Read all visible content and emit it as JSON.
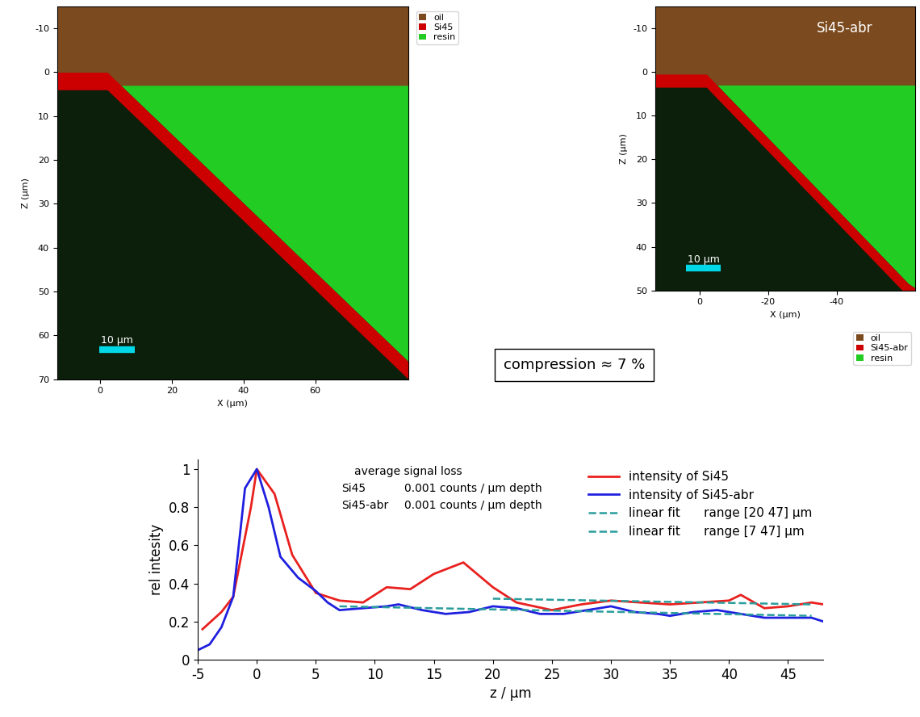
{
  "chart_data": [
    {
      "type": "map",
      "xlabel": "X (μm)",
      "ylabel": "Z (μm)",
      "xlim": [
        -12,
        86
      ],
      "xticks": [
        0,
        20,
        40,
        60
      ],
      "ylim": [
        70,
        -15
      ],
      "yticks": [
        -10,
        0,
        10,
        20,
        30,
        40,
        50,
        60,
        70
      ],
      "legend": "upper left",
      "series": [
        {
          "name": "oil",
          "color": "#7b4a1e",
          "z_range": [
            -15,
            3
          ]
        },
        {
          "name": "Si45",
          "color": "#cc0000",
          "x": [
            -12,
            2,
            86
          ],
          "z": [
            2,
            2,
            68
          ],
          "thickness": 4
        },
        {
          "name": "resin",
          "color": "#22cc22"
        }
      ],
      "scale_bar": {
        "label": "10 μm",
        "length": 10
      }
    },
    {
      "type": "map",
      "title": "Si45-abr",
      "xlabel": "X (μm)",
      "ylabel": "Z (μm)",
      "xlim": [
        13,
        -63
      ],
      "xticks": [
        0,
        -20,
        -40
      ],
      "ylim": [
        50,
        -15
      ],
      "yticks": [
        -10,
        0,
        10,
        20,
        30,
        40,
        50
      ],
      "legend": "upper right",
      "series": [
        {
          "name": "oil",
          "color": "#7b4a1e",
          "z_range": [
            -15,
            3
          ]
        },
        {
          "name": "Si45-abr",
          "color": "#cc0000",
          "x": [
            -63,
            -61,
            -2,
            13
          ],
          "z": [
            51,
            50,
            2,
            2
          ],
          "thickness": 3
        },
        {
          "name": "resin",
          "color": "#22cc22"
        }
      ],
      "scale_bar": {
        "label": "10 μm",
        "length": 10
      }
    },
    {
      "type": "line",
      "xlabel": "z / μm",
      "ylabel": "rel intesity",
      "xlim": [
        -5,
        48
      ],
      "xticks": [
        -5,
        0,
        5,
        10,
        15,
        20,
        25,
        30,
        35,
        40,
        45
      ],
      "ylim": [
        0,
        1.05
      ],
      "yticks": [
        0,
        0.2,
        0.4,
        0.6,
        0.8,
        1
      ],
      "legend": "upper right",
      "annotation": {
        "title": "average signal loss",
        "rows": [
          [
            "Si45",
            "0.001 counts / μm depth"
          ],
          [
            "Si45-abr",
            "0.001 counts / μm depth"
          ]
        ]
      },
      "series": [
        {
          "name": "intensity of Si45",
          "color": "#e8211f",
          "line_style": "solid",
          "x": [
            -4.6,
            -3,
            -2,
            -0.5,
            0,
            1.5,
            3,
            5,
            7,
            9,
            11,
            13,
            15,
            17.5,
            20,
            22,
            25,
            27.5,
            30,
            32.5,
            35,
            37.5,
            40,
            41,
            43,
            45,
            47,
            48
          ],
          "values": [
            0.16,
            0.25,
            0.33,
            0.8,
            1.0,
            0.87,
            0.55,
            0.35,
            0.31,
            0.3,
            0.38,
            0.37,
            0.45,
            0.51,
            0.38,
            0.3,
            0.26,
            0.29,
            0.31,
            0.3,
            0.29,
            0.3,
            0.31,
            0.34,
            0.27,
            0.28,
            0.3,
            0.29
          ]
        },
        {
          "name": "intensity of Si45-abr",
          "color": "#1f1fe0",
          "line_style": "solid",
          "x": [
            -5,
            -4,
            -3,
            -2,
            -1,
            0,
            1,
            2,
            3.5,
            5,
            6,
            7,
            9,
            11,
            12,
            14,
            16,
            18,
            20,
            22,
            24,
            26,
            28,
            30,
            32,
            34,
            35,
            37,
            39,
            41,
            43,
            45,
            47,
            48
          ],
          "values": [
            0.05,
            0.08,
            0.17,
            0.33,
            0.9,
            1.0,
            0.8,
            0.54,
            0.43,
            0.36,
            0.3,
            0.26,
            0.27,
            0.28,
            0.29,
            0.26,
            0.24,
            0.25,
            0.28,
            0.27,
            0.24,
            0.24,
            0.26,
            0.28,
            0.25,
            0.24,
            0.23,
            0.25,
            0.26,
            0.24,
            0.22,
            0.22,
            0.22,
            0.2
          ]
        },
        {
          "name": "linear fit      range [20 47] μm",
          "color": "#2a9d9d",
          "line_style": "dashed",
          "x": [
            20,
            47
          ],
          "values": [
            0.32,
            0.29
          ]
        },
        {
          "name": "linear fit      range [7 47] μm",
          "color": "#2a9d9d",
          "line_style": "dashed",
          "x": [
            7,
            47
          ],
          "values": [
            0.28,
            0.23
          ]
        }
      ]
    }
  ],
  "note": "compression ≈ 7 %"
}
